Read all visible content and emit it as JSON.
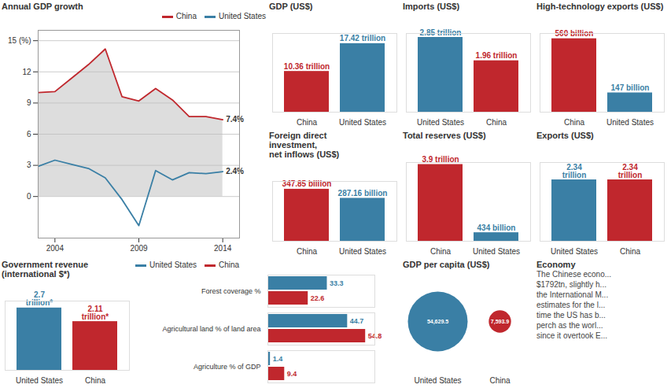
{
  "chart_data": [
    {
      "type": "line",
      "title": "Annual GDP growth",
      "x": [
        2003,
        2004,
        2005,
        2006,
        2007,
        2008,
        2009,
        2010,
        2011,
        2012,
        2013,
        2014
      ],
      "series": [
        {
          "name": "China",
          "color": "#c0272d",
          "values": [
            10.0,
            10.1,
            11.4,
            12.7,
            14.2,
            9.6,
            9.2,
            10.4,
            9.3,
            7.7,
            7.7,
            7.4
          ]
        },
        {
          "name": "United States",
          "color": "#3a7fa5",
          "values": [
            2.9,
            3.5,
            3.1,
            2.7,
            1.8,
            -0.3,
            -2.8,
            2.5,
            1.6,
            2.3,
            2.2,
            2.4
          ]
        }
      ],
      "xlim": [
        2003,
        2015
      ],
      "xticks": [
        2004,
        2009,
        2014
      ],
      "ylim": [
        -4,
        16
      ],
      "yticks": [
        0,
        3,
        6,
        9,
        12,
        {
          "value": 15,
          "label": "15 (%)"
        }
      ],
      "grid": true,
      "legend": "top-right",
      "annotations": [
        {
          "x": 2014,
          "y": 7.4,
          "text": "7.4%"
        },
        {
          "x": 2014,
          "y": 2.4,
          "text": "2.4%"
        }
      ]
    },
    {
      "type": "bar",
      "title": "GDP (US$)",
      "categories": [
        "China",
        "United States"
      ],
      "values": [
        10.36,
        17.42
      ],
      "value_labels": [
        "10.36 trillion",
        "17.42 trillion"
      ],
      "colors": [
        "#c0272d",
        "#3a7fa5"
      ],
      "ylim": [
        0,
        20
      ],
      "data_labels": true,
      "tick_labels": "x"
    },
    {
      "type": "bar",
      "title": "Imports (US$)",
      "categories": [
        "United States",
        "China"
      ],
      "values": [
        2.85,
        1.96
      ],
      "value_labels": [
        "2.85 trillion",
        "1.96 trillion"
      ],
      "colors": [
        "#3a7fa5",
        "#c0272d"
      ],
      "ylim": [
        0,
        3
      ],
      "data_labels": true,
      "tick_labels": "x"
    },
    {
      "type": "bar",
      "title": "High-technology exports (US$)",
      "categories": [
        "China",
        "United States"
      ],
      "values": [
        560,
        147
      ],
      "value_labels": [
        "560 billion",
        "147 billion"
      ],
      "colors": [
        "#c0272d",
        "#3a7fa5"
      ],
      "ylim": [
        0,
        600
      ],
      "data_labels": true,
      "tick_labels": "x"
    },
    {
      "type": "bar",
      "title": "Foreign direct\ninvestment,\nnet inflows (US$)",
      "categories": [
        "China",
        "United States"
      ],
      "values": [
        347.85,
        287.16
      ],
      "value_labels": [
        "347.85 billion",
        "287.16 billion"
      ],
      "colors": [
        "#c0272d",
        "#3a7fa5"
      ],
      "ylim": [
        0,
        400
      ],
      "data_labels": true,
      "tick_labels": "x"
    },
    {
      "type": "bar",
      "title": "Total reserves (US$)",
      "categories": [
        "China",
        "United States"
      ],
      "values": [
        3900,
        434
      ],
      "value_labels": [
        "3.9 trillion",
        "434 billion"
      ],
      "colors": [
        "#c0272d",
        "#3a7fa5"
      ],
      "ylim": [
        0,
        4000
      ],
      "data_labels": true,
      "tick_labels": "x"
    },
    {
      "type": "bar",
      "title": "Exports (US$)",
      "categories": [
        "United States",
        "China"
      ],
      "values": [
        2.34,
        2.34
      ],
      "value_labels": [
        "2.34\ntrillion",
        "2.34\ntrillion"
      ],
      "colors": [
        "#3a7fa5",
        "#c0272d"
      ],
      "ylim": [
        0,
        3
      ],
      "data_labels": true,
      "tick_labels": "x"
    },
    {
      "type": "bar",
      "title": "Government revenue\n(international $*)",
      "categories": [
        "United States",
        "China"
      ],
      "values": [
        2.7,
        2.11
      ],
      "value_labels": [
        "2.7\ntrillion*",
        "2.11\ntrillion*"
      ],
      "colors": [
        "#3a7fa5",
        "#c0272d"
      ],
      "ylim": [
        0,
        3
      ],
      "data_labels": true,
      "tick_labels": "x"
    },
    {
      "type": "bar",
      "orientation": "horizontal",
      "categories": [
        "Forest coverage %",
        "Agricultural land % of land area",
        "Agriculture % of GDP"
      ],
      "series": [
        {
          "name": "United States",
          "color": "#3a7fa5",
          "values": [
            33.3,
            44.7,
            1.4
          ]
        },
        {
          "name": "China",
          "color": "#c0272d",
          "values": [
            22.6,
            54.8,
            9.4
          ]
        }
      ],
      "xlim": [
        0,
        60
      ],
      "data_labels": true,
      "tick_labels": "y",
      "legend": "top"
    },
    {
      "type": "bubble",
      "title": "GDP per capita (US$)",
      "categories": [
        "United States",
        "China"
      ],
      "values": [
        54629.5,
        7593.9
      ],
      "value_labels": [
        "54,629.5",
        "7,593.9"
      ],
      "colors": [
        "#3a7fa5",
        "#c0272d"
      ],
      "data_labels": true,
      "tick_labels": "x"
    },
    {
      "type": "text",
      "title": "Economy",
      "annotations": [
        "The Chinese econo...",
        "$1792tn, slightly h...",
        "the International M...",
        "estimates for the l...",
        "time the US has b...",
        "perch as the worl...",
        "since it overtook E..."
      ]
    }
  ]
}
